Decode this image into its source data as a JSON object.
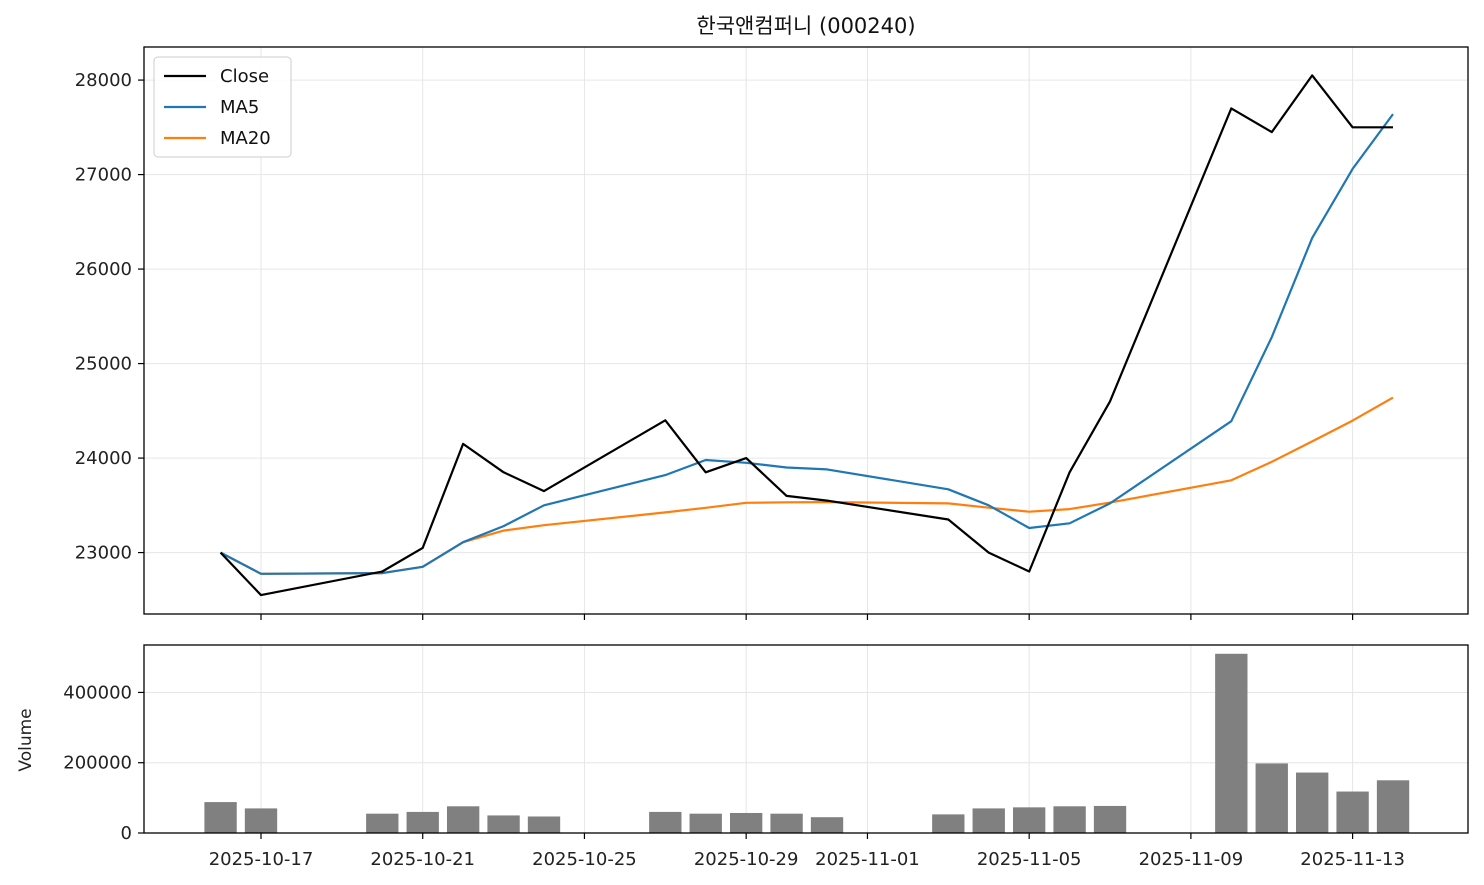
{
  "chart_data": [
    {
      "type": "line",
      "title": "한국앤컴퍼니 (000240)",
      "x": [
        "2025-10-16",
        "2025-10-17",
        "2025-10-20",
        "2025-10-21",
        "2025-10-22",
        "2025-10-23",
        "2025-10-24",
        "2025-10-27",
        "2025-10-28",
        "2025-10-29",
        "2025-10-30",
        "2025-10-31",
        "2025-11-03",
        "2025-11-04",
        "2025-11-05",
        "2025-11-06",
        "2025-11-07",
        "2025-11-10",
        "2025-11-11",
        "2025-11-12",
        "2025-11-13",
        "2025-11-14"
      ],
      "series": [
        {
          "name": "Close",
          "color": "#000000",
          "values": [
            23000,
            22550,
            22800,
            23050,
            24150,
            23850,
            23650,
            24400,
            23850,
            24000,
            23600,
            23550,
            23350,
            23000,
            22800,
            23850,
            24600,
            27700,
            27450,
            28050,
            27500,
            27500
          ]
        },
        {
          "name": "MA5",
          "color": "#1f77b4",
          "values": [
            23000,
            22775,
            22783,
            22850,
            23110,
            23280,
            23500,
            23820,
            23980,
            23950,
            23900,
            23880,
            23670,
            23500,
            23260,
            23310,
            23520,
            24390,
            25280,
            26330,
            27060,
            27640
          ]
        },
        {
          "name": "MA20",
          "color": "#ff7f0e",
          "values": [
            23000,
            22775,
            22783,
            22850,
            23110,
            23233,
            23290,
            23425,
            23474,
            23527,
            23532,
            23534,
            23520,
            23475,
            23433,
            23460,
            23529,
            23765,
            23961,
            24176,
            24397,
            24640
          ]
        }
      ],
      "xlabel": "",
      "ylabel": "",
      "y_ticks": [
        "23000",
        "24000",
        "25000",
        "26000",
        "27000",
        "28000"
      ],
      "ylim": [
        22350,
        28350
      ],
      "grid": true,
      "legend": "upper left"
    },
    {
      "type": "bar",
      "categories": [
        "2025-10-16",
        "2025-10-17",
        "2025-10-20",
        "2025-10-21",
        "2025-10-22",
        "2025-10-23",
        "2025-10-24",
        "2025-10-27",
        "2025-10-28",
        "2025-10-29",
        "2025-10-30",
        "2025-10-31",
        "2025-11-03",
        "2025-11-04",
        "2025-11-05",
        "2025-11-06",
        "2025-11-07",
        "2025-11-10",
        "2025-11-11",
        "2025-11-12",
        "2025-11-13",
        "2025-11-14"
      ],
      "values": [
        88000,
        70000,
        55000,
        60000,
        76000,
        50000,
        47000,
        60000,
        55000,
        57000,
        55000,
        45000,
        53000,
        70000,
        73000,
        76000,
        77000,
        510000,
        198000,
        172000,
        118000,
        150000
      ],
      "color": "#808080",
      "ylabel": "Volume",
      "y_ticks": [
        "0",
        "200000",
        "400000"
      ],
      "ylim": [
        0,
        535000
      ],
      "grid": true
    }
  ],
  "x_ticks": [
    "2025-10-17",
    "2025-10-21",
    "2025-10-25",
    "2025-10-29",
    "2025-11-01",
    "2025-11-05",
    "2025-11-09",
    "2025-11-13"
  ]
}
